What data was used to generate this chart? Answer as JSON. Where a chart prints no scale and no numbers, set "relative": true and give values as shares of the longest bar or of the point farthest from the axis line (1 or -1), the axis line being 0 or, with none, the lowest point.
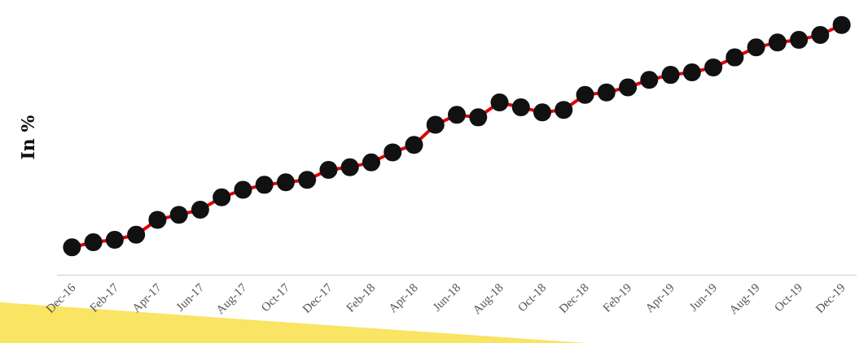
{
  "chart_data": {
    "type": "line",
    "ylabel": "In %",
    "relative": true,
    "marker": "circle",
    "line_style": "solid",
    "categories": [
      "Dec-16",
      null,
      "Feb-17",
      null,
      "Apr-17",
      null,
      "Jun-17",
      null,
      "Aug-17",
      null,
      "Oct-17",
      null,
      "Dec-17",
      null,
      "Feb-18",
      null,
      "Apr-18",
      null,
      "Jun-18",
      null,
      "Aug-18",
      null,
      "Oct-18",
      null,
      "Dec-18",
      null,
      "Feb-19",
      null,
      "Apr-19",
      null,
      "Jun-19",
      null,
      "Aug-19",
      null,
      "Oct-19",
      null,
      "Dec-19"
    ],
    "series": [
      {
        "color": "#e00000",
        "values": [
          0.11,
          0.13,
          0.14,
          0.16,
          0.22,
          0.24,
          0.26,
          0.31,
          0.34,
          0.36,
          0.37,
          0.38,
          0.42,
          0.43,
          0.45,
          0.49,
          0.52,
          0.6,
          0.64,
          0.63,
          0.69,
          0.67,
          0.65,
          0.66,
          0.72,
          0.73,
          0.75,
          0.78,
          0.8,
          0.81,
          0.83,
          0.87,
          0.91,
          0.93,
          0.94,
          0.96,
          1
        ]
      }
    ]
  }
}
